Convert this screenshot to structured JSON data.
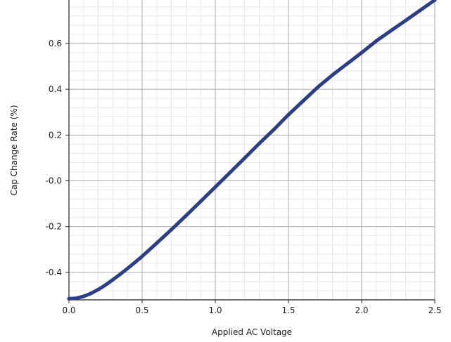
{
  "chart_data": {
    "type": "line",
    "title": "",
    "xlabel": "Applied AC Voltage",
    "ylabel": "Cap Change Rate (%)",
    "xlim": [
      0.0,
      2.5
    ],
    "ylim": [
      -0.52,
      0.79
    ],
    "x_ticks": [
      0.0,
      0.5,
      1.0,
      1.5,
      2.0,
      2.5
    ],
    "x_tick_labels": [
      "0.0",
      "0.5",
      "1.0",
      "1.5",
      "2.0",
      "2.5"
    ],
    "y_ticks": [
      -0.4,
      -0.2,
      0.0,
      0.2,
      0.4,
      0.6
    ],
    "y_tick_labels": [
      "-0.4",
      "-0.2",
      "-0.0",
      "0.2",
      "0.4",
      "0.6"
    ],
    "grid": "major and minor",
    "colors": {
      "series": "#2b3f87"
    },
    "series": [
      {
        "x": [
          0.0,
          0.05,
          0.1,
          0.15,
          0.2,
          0.25,
          0.3,
          0.35,
          0.4,
          0.45,
          0.5,
          0.6,
          0.7,
          0.8,
          0.9,
          1.0,
          1.1,
          1.2,
          1.3,
          1.4,
          1.5,
          1.6,
          1.7,
          1.8,
          1.9,
          2.0,
          2.1,
          2.2,
          2.3,
          2.4,
          2.5
        ],
        "y": [
          -0.515,
          -0.513,
          -0.505,
          -0.492,
          -0.475,
          -0.455,
          -0.432,
          -0.408,
          -0.383,
          -0.357,
          -0.33,
          -0.272,
          -0.213,
          -0.152,
          -0.09,
          -0.027,
          0.036,
          0.099,
          0.163,
          0.224,
          0.289,
          0.349,
          0.409,
          0.462,
          0.511,
          0.56,
          0.611,
          0.656,
          0.7,
          0.745,
          0.79
        ]
      }
    ]
  }
}
